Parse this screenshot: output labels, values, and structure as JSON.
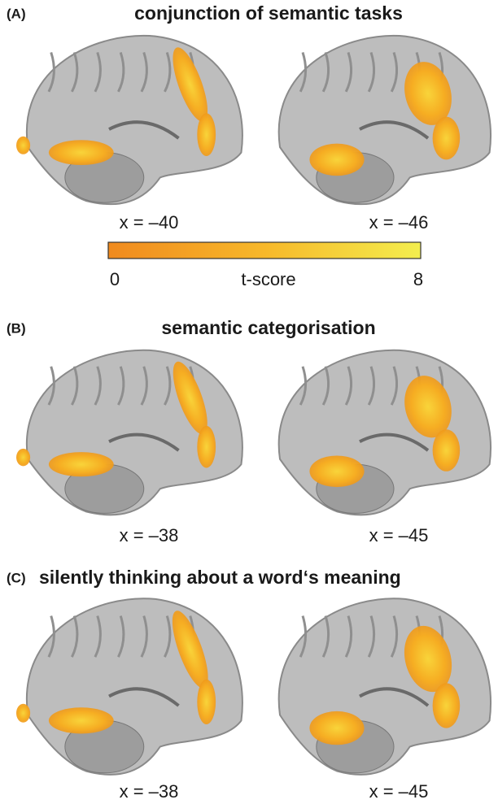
{
  "panels": [
    {
      "label": "(A)",
      "title": "conjunction of semantic tasks",
      "images": [
        {
          "caption": "x = –40"
        },
        {
          "caption": "x = –46"
        }
      ]
    },
    {
      "label": "(B)",
      "title": "semantic categorisation",
      "images": [
        {
          "caption": "x = –38"
        },
        {
          "caption": "x = –45"
        }
      ]
    },
    {
      "label": "(C)",
      "title": "silently thinking about a word‘s meaning",
      "images": [
        {
          "caption": "x = –38"
        },
        {
          "caption": "x = –45"
        }
      ]
    }
  ],
  "colorbar": {
    "min": 0,
    "label": "t-score",
    "max": 8
  }
}
